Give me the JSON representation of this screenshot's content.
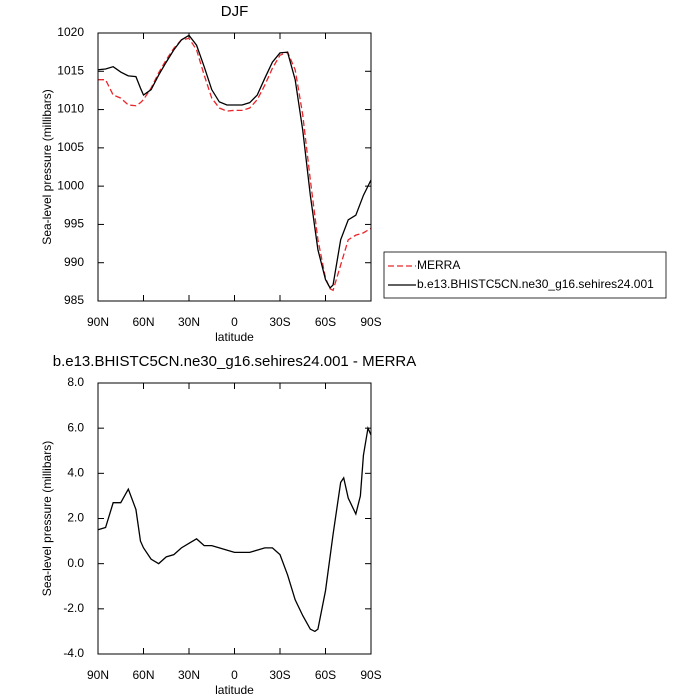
{
  "chart_data": [
    {
      "type": "line",
      "title": "DJF",
      "xlabel": "latitude",
      "ylabel": "Sea-level pressure (millibars)",
      "x": [
        90,
        85,
        80,
        75,
        70,
        65,
        62,
        60,
        55,
        50,
        45,
        40,
        35,
        30,
        25,
        20,
        15,
        10,
        5,
        0,
        -5,
        -10,
        -15,
        -20,
        -25,
        -30,
        -35,
        -40,
        -45,
        -50,
        -55,
        -60,
        -63,
        -65,
        -70,
        -75,
        -80,
        -85,
        -90
      ],
      "series": [
        {
          "name": "MERRA",
          "color": "#e8262b",
          "dashed": true,
          "values": [
            1013.9,
            1013.9,
            1011.9,
            1011.5,
            1010.6,
            1010.5,
            1010.9,
            1011.3,
            1012.8,
            1014.8,
            1016.5,
            1018.0,
            1019.1,
            1019.3,
            1017.8,
            1014.5,
            1011.5,
            1010.2,
            1009.8,
            1009.9,
            1009.9,
            1010.2,
            1011.3,
            1013.2,
            1015.4,
            1017.1,
            1017.5,
            1015.2,
            1009.3,
            1000.8,
            993.0,
            988.0,
            986.6,
            986.4,
            989.7,
            993.0,
            993.6,
            993.9,
            994.5
          ]
        },
        {
          "name": "b.e13.BHISTC5CN.ne30_g16.sehires24.001",
          "color": "#000000",
          "dashed": false,
          "values": [
            1015.2,
            1015.3,
            1015.6,
            1014.9,
            1014.4,
            1014.3,
            1012.8,
            1011.9,
            1012.6,
            1014.5,
            1016.2,
            1017.8,
            1019.1,
            1019.7,
            1018.4,
            1015.6,
            1012.6,
            1011.0,
            1010.6,
            1010.6,
            1010.6,
            1010.9,
            1011.9,
            1014.1,
            1016.2,
            1017.4,
            1017.5,
            1013.9,
            1007.3,
            998.8,
            991.7,
            987.8,
            986.7,
            987.1,
            993.0,
            995.6,
            996.2,
            998.8,
            1000.8
          ]
        }
      ],
      "xlim": [
        90,
        -90
      ],
      "xticks": [
        {
          "value": 90,
          "label": "90N"
        },
        {
          "value": 60,
          "label": "60N"
        },
        {
          "value": 30,
          "label": "30N"
        },
        0,
        {
          "value": -30,
          "label": "30S"
        },
        {
          "value": -60,
          "label": "60S"
        },
        {
          "value": -90,
          "label": "90S"
        }
      ],
      "ylim": [
        985,
        1020
      ],
      "yticks": [
        985,
        990,
        995,
        1000,
        1005,
        1010,
        1015,
        1020
      ],
      "legend": "right"
    },
    {
      "type": "line",
      "title": "b.e13.BHISTC5CN.ne30_g16.sehires24.001 - MERRA",
      "xlabel": "latitude",
      "ylabel": "Sea-level pressure (millibars)",
      "x": [
        90,
        85,
        80,
        75,
        70,
        65,
        62,
        60,
        55,
        50,
        45,
        40,
        35,
        30,
        25,
        20,
        15,
        10,
        5,
        0,
        -5,
        -10,
        -15,
        -20,
        -25,
        -30,
        -35,
        -40,
        -45,
        -50,
        -53,
        -55,
        -60,
        -65,
        -70,
        -72,
        -75,
        -80,
        -83,
        -85,
        -88,
        -90
      ],
      "values": [
        1.5,
        1.6,
        2.7,
        2.7,
        3.3,
        2.4,
        1.0,
        0.7,
        0.2,
        0.0,
        0.3,
        0.4,
        0.7,
        0.9,
        1.1,
        0.8,
        0.8,
        0.7,
        0.6,
        0.5,
        0.5,
        0.5,
        0.6,
        0.7,
        0.7,
        0.4,
        -0.5,
        -1.6,
        -2.3,
        -2.9,
        -3.0,
        -2.9,
        -1.2,
        1.3,
        3.6,
        3.8,
        2.9,
        2.2,
        3.0,
        4.8,
        6.0,
        5.7
      ],
      "color": "#000000",
      "xlim": [
        90,
        -90
      ],
      "xticks": [
        {
          "value": 90,
          "label": "90N"
        },
        {
          "value": 60,
          "label": "60N"
        },
        {
          "value": 30,
          "label": "30N"
        },
        0,
        {
          "value": -30,
          "label": "30S"
        },
        {
          "value": -60,
          "label": "60S"
        },
        {
          "value": -90,
          "label": "90S"
        }
      ],
      "ylim": [
        -4,
        8
      ],
      "yticks": [
        {
          "value": -4,
          "label": "-4.0"
        },
        {
          "value": -2,
          "label": "-2.0"
        },
        {
          "value": 0,
          "label": "0.0"
        },
        {
          "value": 2,
          "label": "2.0"
        },
        {
          "value": 4,
          "label": "4.0"
        },
        {
          "value": 6,
          "label": "6.0"
        },
        {
          "value": 8,
          "label": "8.0"
        }
      ]
    }
  ]
}
